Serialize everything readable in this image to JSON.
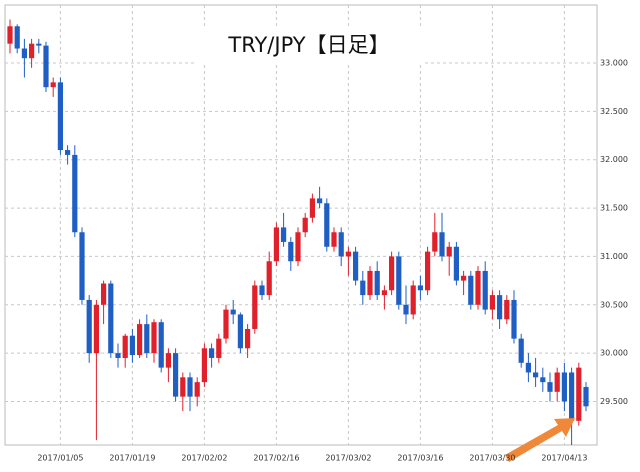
{
  "chart_data": {
    "type": "candlestick",
    "title": "TRY/JPY【日足】",
    "up_color": "#e0202a",
    "down_color": "#1f5fc4",
    "grid": true,
    "ylim": [
      29.05,
      33.6
    ],
    "yticks": [
      {
        "value": 29.5,
        "label": "29.500"
      },
      {
        "value": 30,
        "label": "30.000"
      },
      {
        "value": 30.5,
        "label": "30.500"
      },
      {
        "value": 31,
        "label": "31.000"
      },
      {
        "value": 31.5,
        "label": "31.500"
      },
      {
        "value": 32,
        "label": "32.000"
      },
      {
        "value": 32.5,
        "label": "32.500"
      },
      {
        "value": 33,
        "label": "33.000"
      }
    ],
    "categories": [
      null,
      null,
      null,
      null,
      null,
      null,
      null,
      "2017/01/05",
      null,
      null,
      null,
      null,
      null,
      null,
      null,
      null,
      null,
      "2017/01/19",
      null,
      null,
      null,
      null,
      null,
      null,
      null,
      null,
      null,
      "2017/02/02",
      null,
      null,
      null,
      null,
      null,
      null,
      null,
      null,
      null,
      "2017/02/16",
      null,
      null,
      null,
      null,
      null,
      null,
      null,
      null,
      null,
      "2017/03/02",
      null,
      null,
      null,
      null,
      null,
      null,
      null,
      null,
      null,
      "2017/03/16",
      null,
      null,
      null,
      null,
      null,
      null,
      null,
      null,
      null,
      "2017/03/30",
      null,
      null,
      null,
      null,
      null,
      null,
      null,
      null,
      null,
      "2017/04/13",
      null,
      null,
      null
    ],
    "open": [
      33.2,
      33.38,
      33.15,
      33.05,
      33.2,
      33.18,
      32.75,
      32.8,
      32.1,
      32.05,
      31.25,
      30.55,
      30.0,
      30.5,
      30.72,
      30.0,
      29.95,
      30.18,
      29.98,
      30.3,
      30.0,
      30.32,
      29.85,
      30.0,
      29.55,
      29.75,
      29.55,
      29.7,
      30.05,
      29.95,
      30.15,
      30.45,
      30.4,
      30.05,
      30.25,
      30.7,
      30.6,
      30.95,
      31.3,
      31.15,
      30.95,
      31.25,
      31.4,
      31.6,
      31.55,
      31.1,
      31.25,
      31.0,
      31.05,
      30.75,
      30.6,
      30.85,
      30.6,
      30.65,
      31.0,
      30.5,
      30.4,
      30.7,
      30.65,
      31.05,
      31.25,
      31.0,
      31.1,
      30.75,
      30.8,
      30.5,
      30.85,
      30.45,
      30.6,
      30.35,
      30.55,
      30.15,
      29.9,
      29.8,
      29.75,
      29.7,
      29.6,
      29.8,
      29.8,
      29.3,
      29.65
    ],
    "high": [
      33.45,
      33.4,
      33.25,
      33.25,
      33.25,
      33.22,
      32.85,
      32.85,
      32.15,
      32.15,
      31.3,
      30.6,
      30.55,
      30.75,
      30.75,
      30.1,
      30.2,
      30.25,
      30.35,
      30.4,
      30.35,
      30.35,
      30.05,
      30.05,
      29.8,
      29.8,
      29.75,
      30.1,
      30.1,
      30.2,
      30.5,
      30.55,
      30.42,
      30.3,
      30.75,
      30.75,
      31.05,
      31.35,
      31.45,
      31.2,
      31.3,
      31.45,
      31.65,
      31.72,
      31.6,
      31.3,
      31.3,
      31.1,
      31.1,
      30.85,
      30.9,
      30.95,
      30.7,
      31.05,
      31.05,
      30.7,
      30.75,
      30.8,
      31.1,
      31.45,
      31.45,
      31.15,
      31.15,
      30.85,
      30.85,
      30.9,
      30.95,
      30.65,
      30.65,
      30.6,
      30.65,
      30.2,
      30.0,
      29.95,
      29.85,
      29.8,
      29.85,
      29.9,
      29.85,
      29.9,
      29.7
    ],
    "low": [
      33.1,
      33.1,
      32.85,
      32.95,
      33.1,
      32.7,
      32.65,
      32.05,
      31.95,
      31.2,
      30.5,
      29.9,
      29.1,
      30.3,
      29.95,
      29.85,
      29.85,
      29.9,
      29.95,
      29.95,
      29.9,
      29.8,
      29.7,
      29.5,
      29.4,
      29.4,
      29.45,
      29.65,
      29.85,
      29.9,
      30.1,
      30.3,
      30.0,
      29.95,
      30.2,
      30.55,
      30.55,
      30.9,
      31.1,
      30.85,
      30.9,
      31.2,
      31.35,
      31.5,
      31.05,
      31.05,
      30.9,
      30.8,
      30.7,
      30.5,
      30.55,
      30.55,
      30.45,
      30.6,
      30.45,
      30.3,
      30.35,
      30.55,
      30.6,
      31.0,
      30.95,
      30.8,
      30.7,
      30.6,
      30.45,
      30.45,
      30.4,
      30.35,
      30.25,
      30.3,
      30.1,
      29.85,
      29.7,
      29.65,
      29.6,
      29.5,
      29.5,
      29.4,
      29.05,
      29.25,
      29.4
    ],
    "close": [
      33.38,
      33.15,
      33.05,
      33.2,
      33.18,
      32.75,
      32.8,
      32.1,
      32.05,
      31.25,
      30.55,
      30.0,
      30.5,
      30.72,
      30.0,
      29.95,
      30.18,
      29.98,
      30.3,
      30.0,
      30.32,
      29.85,
      30.0,
      29.55,
      29.75,
      29.55,
      29.7,
      30.05,
      29.95,
      30.15,
      30.45,
      30.4,
      30.05,
      30.25,
      30.7,
      30.6,
      30.95,
      31.3,
      31.15,
      30.95,
      31.25,
      31.4,
      31.6,
      31.55,
      31.1,
      31.25,
      31.0,
      31.05,
      30.75,
      30.6,
      30.85,
      30.6,
      30.65,
      31.0,
      30.5,
      30.4,
      30.7,
      30.65,
      31.05,
      31.25,
      31.0,
      31.1,
      30.75,
      30.8,
      30.5,
      30.85,
      30.45,
      30.6,
      30.35,
      30.55,
      30.15,
      29.9,
      29.8,
      29.75,
      29.7,
      29.6,
      29.8,
      29.5,
      29.3,
      29.85,
      29.45
    ]
  }
}
